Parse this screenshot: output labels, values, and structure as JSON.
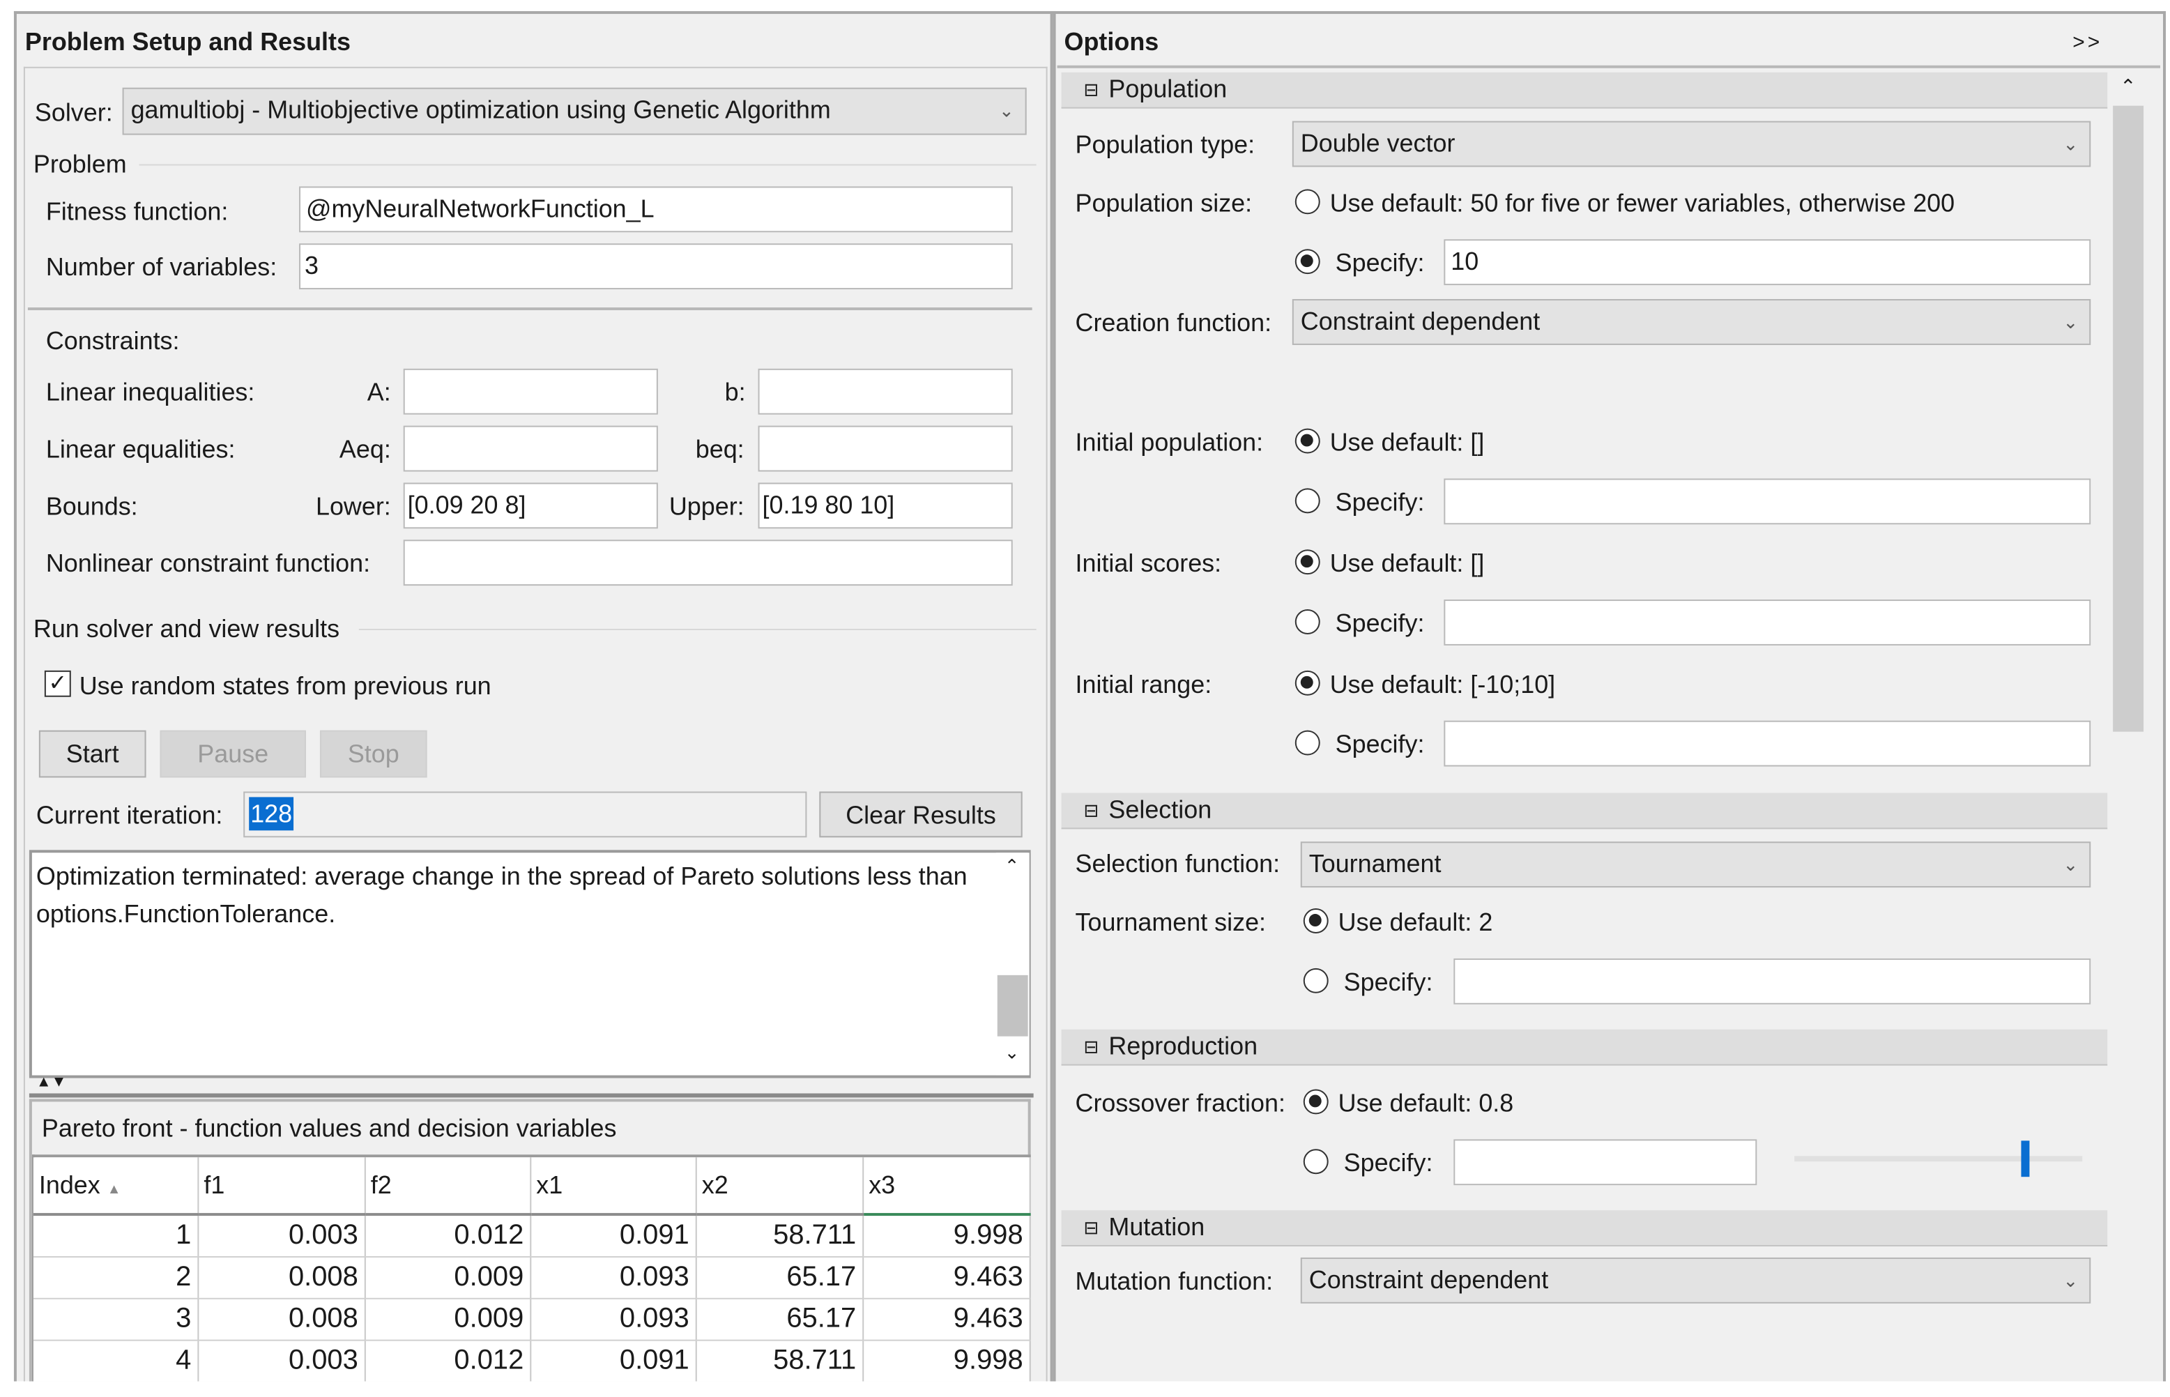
{
  "left": {
    "title": "Problem Setup and Results",
    "solver_label": "Solver:",
    "solver_value": "gamultiobj - Multiobjective optimization using Genetic Algorithm",
    "problem_label": "Problem",
    "fitness_label": "Fitness function:",
    "fitness_value": "@myNeuralNetworkFunction_L",
    "nvars_label": "Number of variables:",
    "nvars_value": "3",
    "constraints_label": "Constraints:",
    "lin_ineq_label": "Linear inequalities:",
    "A_label": "A:",
    "A_value": "",
    "b_label": "b:",
    "b_value": "",
    "lin_eq_label": "Linear equalities:",
    "Aeq_label": "Aeq:",
    "Aeq_value": "",
    "beq_label": "beq:",
    "beq_value": "",
    "bounds_label": "Bounds:",
    "lower_label": "Lower:",
    "lower_value": "[0.09 20 8]",
    "upper_label": "Upper:",
    "upper_value": "[0.19 80 10]",
    "nonlcon_label": "Nonlinear constraint function:",
    "nonlcon_value": "",
    "run_label": "Run solver and view results",
    "random_states_label": "Use random states from previous run",
    "random_states_checked": true,
    "start_label": "Start",
    "pause_label": "Pause",
    "stop_label": "Stop",
    "iteration_label": "Current iteration:",
    "iteration_value": "128",
    "clear_label": "Clear Results",
    "message": "Optimization terminated: average change in the spread of Pareto solutions less than options.FunctionTolerance.",
    "pareto_title": "Pareto front - function values and decision variables",
    "table": {
      "columns": [
        "Index",
        "f1",
        "f2",
        "x1",
        "x2",
        "x3"
      ],
      "rows": [
        [
          "1",
          "0.003",
          "0.012",
          "0.091",
          "58.711",
          "9.998"
        ],
        [
          "2",
          "0.008",
          "0.009",
          "0.093",
          "65.17",
          "9.463"
        ],
        [
          "3",
          "0.008",
          "0.009",
          "0.093",
          "65.17",
          "9.463"
        ],
        [
          "4",
          "0.003",
          "0.012",
          "0.091",
          "58.711",
          "9.998"
        ]
      ]
    }
  },
  "right": {
    "title": "Options",
    "expand_label": ">>",
    "population": {
      "header": "Population",
      "type_label": "Population type:",
      "type_value": "Double vector",
      "size_label": "Population size:",
      "size_default": "Use default: 50 for five or fewer variables, otherwise 200",
      "specify": "Specify:",
      "size_specify_value": "10",
      "creation_label": "Creation function:",
      "creation_value": "Constraint dependent",
      "init_pop_label": "Initial population:",
      "init_pop_default": "Use default: []",
      "init_scores_label": "Initial scores:",
      "init_scores_default": "Use default: []",
      "init_range_label": "Initial range:",
      "init_range_default": "Use default: [-10;10]"
    },
    "selection": {
      "header": "Selection",
      "function_label": "Selection function:",
      "function_value": "Tournament",
      "tsize_label": "Tournament size:",
      "tsize_default": "Use default: 2",
      "specify": "Specify:"
    },
    "reproduction": {
      "header": "Reproduction",
      "crossover_label": "Crossover fraction:",
      "crossover_default": "Use default: 0.8",
      "specify": "Specify:",
      "slider_value": 0.8
    },
    "mutation": {
      "header": "Mutation",
      "function_label": "Mutation function:",
      "function_value": "Constraint dependent"
    },
    "accent_color": "#0a6ed1"
  }
}
